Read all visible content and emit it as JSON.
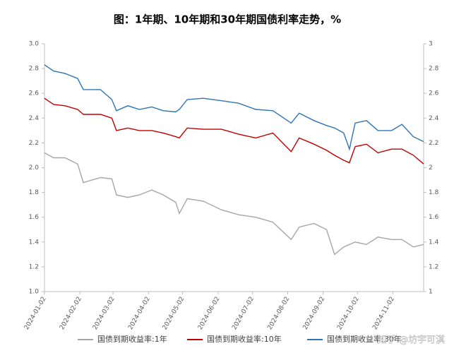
{
  "chart_data": {
    "type": "line",
    "title": "图：1年期、10年期和30年期国债利率走势，%",
    "x": [
      "2024-01-02",
      "2024-01-10",
      "2024-01-20",
      "2024-01-31",
      "2024-02-05",
      "2024-02-20",
      "2024-03-01",
      "2024-03-05",
      "2024-03-15",
      "2024-03-25",
      "2024-04-05",
      "2024-04-15",
      "2024-04-26",
      "2024-04-29",
      "2024-05-06",
      "2024-05-20",
      "2024-06-05",
      "2024-06-20",
      "2024-07-05",
      "2024-07-20",
      "2024-08-05",
      "2024-08-12",
      "2024-08-25",
      "2024-09-05",
      "2024-09-12",
      "2024-09-20",
      "2024-09-25",
      "2024-09-30",
      "2024-10-10",
      "2024-10-20",
      "2024-11-01",
      "2024-11-10",
      "2024-11-20",
      "2024-11-29"
    ],
    "series": [
      {
        "name": "国债到期收益率:1年",
        "color": "#a6a6a6",
        "values": [
          2.12,
          2.08,
          2.08,
          2.03,
          1.88,
          1.92,
          1.91,
          1.78,
          1.76,
          1.78,
          1.82,
          1.78,
          1.72,
          1.63,
          1.75,
          1.73,
          1.66,
          1.62,
          1.6,
          1.56,
          1.42,
          1.52,
          1.55,
          1.5,
          1.3,
          1.36,
          1.38,
          1.4,
          1.38,
          1.44,
          1.42,
          1.42,
          1.36,
          1.38
        ]
      },
      {
        "name": "国债到期收益率:10年",
        "color": "#c00000",
        "values": [
          2.56,
          2.51,
          2.5,
          2.47,
          2.43,
          2.43,
          2.4,
          2.3,
          2.32,
          2.3,
          2.3,
          2.28,
          2.25,
          2.24,
          2.32,
          2.31,
          2.31,
          2.27,
          2.24,
          2.28,
          2.13,
          2.24,
          2.19,
          2.14,
          2.1,
          2.06,
          2.04,
          2.17,
          2.19,
          2.12,
          2.15,
          2.15,
          2.1,
          2.03
        ]
      },
      {
        "name": "国债到期收益率:30年",
        "color": "#2e75b6",
        "values": [
          2.83,
          2.78,
          2.76,
          2.72,
          2.63,
          2.63,
          2.55,
          2.46,
          2.5,
          2.47,
          2.49,
          2.46,
          2.45,
          2.47,
          2.55,
          2.56,
          2.54,
          2.52,
          2.47,
          2.46,
          2.36,
          2.44,
          2.38,
          2.34,
          2.32,
          2.28,
          2.15,
          2.36,
          2.38,
          2.3,
          2.3,
          2.35,
          2.25,
          2.21
        ]
      }
    ],
    "xlim": [
      "2024-01-02",
      "2024-11-29"
    ],
    "xticks": [
      "2024-01-02",
      "2024-02-02",
      "2024-03-02",
      "2024-04-02",
      "2024-05-02",
      "2024-06-02",
      "2024-07-02",
      "2024-08-02",
      "2024-09-02",
      "2024-10-02",
      "2024-11-02"
    ],
    "ylim": [
      1,
      3
    ],
    "yticks": [
      {
        "value": 1,
        "label": "1.0"
      },
      1.2,
      1.4,
      1.6,
      1.8,
      {
        "value": 2,
        "label": "2.0"
      },
      2.2,
      2.4,
      2.6,
      2.8,
      {
        "value": 3,
        "label": "3.0"
      }
    ],
    "y2lim": [
      1,
      3
    ],
    "y2ticks": [
      1,
      1.2,
      1.4,
      1.6,
      1.8,
      2,
      2.2,
      2.4,
      2.6,
      2.8,
      3
    ],
    "legend": "bottom",
    "watermark": "知乎 @坊宇可淇"
  }
}
